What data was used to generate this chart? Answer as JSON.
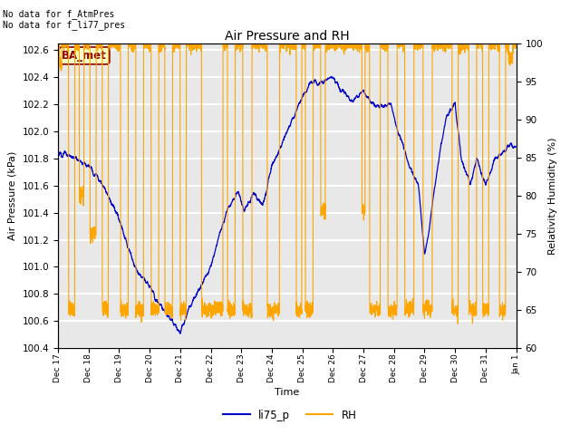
{
  "title": "Air Pressure and RH",
  "xlabel": "Time",
  "ylabel_left": "Air Pressure (kPa)",
  "ylabel_right": "Relativity Humidity (%)",
  "ylim_left": [
    100.4,
    102.65
  ],
  "ylim_right": [
    60,
    100
  ],
  "yticks_left": [
    100.4,
    100.6,
    100.8,
    101.0,
    101.2,
    101.4,
    101.6,
    101.8,
    102.0,
    102.2,
    102.4,
    102.6
  ],
  "yticks_right": [
    60,
    65,
    70,
    75,
    80,
    85,
    90,
    95,
    100
  ],
  "annotation_text": "No data for f_AtmPres\nNo data for f_li77_pres",
  "ba_met_label": "BA_met",
  "legend_label_blue": "li75_p",
  "legend_label_orange": "RH",
  "line_color_blue": "#0000cc",
  "line_color_orange": "#ffa500",
  "bg_color": "#e8e8e8",
  "grid_color": "#ffffff",
  "fig_bg": "#ffffff",
  "xtick_labels": [
    "Dec 17",
    "Dec 18",
    "Dec 19",
    "Dec 20",
    "Dec 21",
    "Dec 22",
    "Dec 23",
    "Dec 24",
    "Dec 25",
    "Dec 26",
    "Dec 27",
    "Dec 28",
    "Dec 29",
    "Dec 30",
    "Dec 31",
    "Jan 1"
  ]
}
